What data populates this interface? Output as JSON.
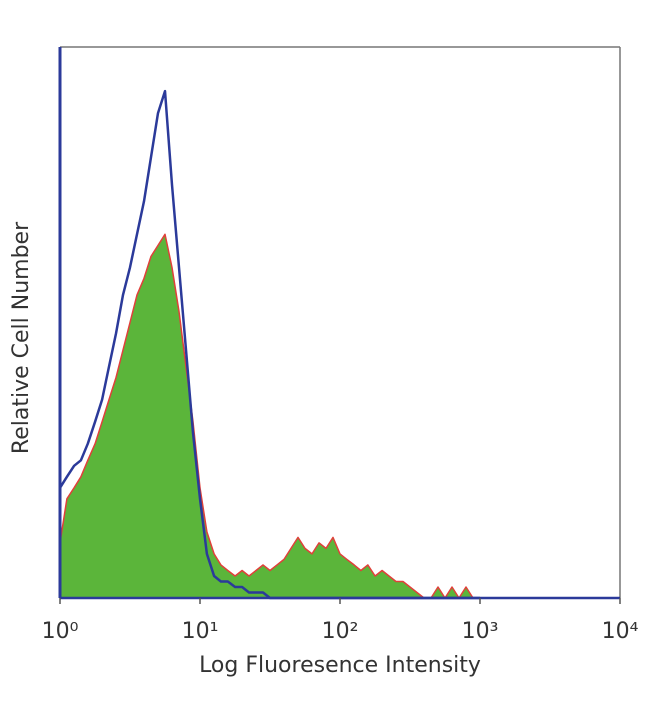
{
  "chart_data": {
    "type": "histogram-overlay",
    "xlabel": "Log Fluoresence Intensity",
    "ylabel": "Relative Cell Number",
    "log_x": true,
    "xlim": [
      1,
      10000
    ],
    "ylim": [
      0,
      100
    ],
    "xticks": [
      {
        "value": 1,
        "label": "10⁰"
      },
      {
        "value": 10,
        "label": "10¹"
      },
      {
        "value": 100,
        "label": "10²"
      },
      {
        "value": 1000,
        "label": "10³"
      },
      {
        "value": 10000,
        "label": "10⁴"
      }
    ],
    "x": [
      1,
      1.12,
      1.26,
      1.41,
      1.58,
      1.78,
      2.0,
      2.24,
      2.51,
      2.82,
      3.16,
      3.55,
      3.98,
      4.47,
      5.01,
      5.62,
      6.31,
      7.08,
      7.94,
      8.91,
      10,
      11.2,
      12.6,
      14.1,
      15.8,
      17.8,
      20,
      22.4,
      25.1,
      28.2,
      31.6,
      35.5,
      39.8,
      44.7,
      50.1,
      56.2,
      63.1,
      70.8,
      79.4,
      89.1,
      100,
      112,
      126,
      141,
      158,
      178,
      200,
      224,
      251,
      282,
      316,
      355,
      398,
      447,
      501,
      562,
      631,
      708,
      794,
      891,
      1000
    ],
    "series": [
      {
        "color": "#5bb53a",
        "outline": "#e0403a",
        "filled": true,
        "values": [
          10,
          18,
          20,
          22,
          25,
          28,
          32,
          36,
          40,
          45,
          50,
          55,
          58,
          62,
          64,
          66,
          60,
          52,
          42,
          32,
          20,
          12,
          8,
          6,
          5,
          4,
          5,
          4,
          5,
          6,
          5,
          6,
          7,
          9,
          11,
          9,
          8,
          10,
          9,
          11,
          8,
          7,
          6,
          5,
          6,
          4,
          5,
          4,
          3,
          3,
          2,
          1,
          0,
          0,
          2,
          0,
          2,
          0,
          2,
          0,
          0
        ]
      },
      {
        "color": "#2b3a9a",
        "filled": false,
        "values": [
          20,
          22,
          24,
          25,
          28,
          32,
          36,
          42,
          48,
          55,
          60,
          66,
          72,
          80,
          88,
          92,
          75,
          60,
          45,
          30,
          18,
          8,
          4,
          3,
          3,
          2,
          2,
          1,
          1,
          1,
          0,
          0,
          0,
          0,
          0,
          0,
          0,
          0,
          0,
          0,
          0,
          0,
          0,
          0,
          0,
          0,
          0,
          0,
          0,
          0,
          0,
          0,
          0,
          0,
          0,
          0,
          0,
          0,
          0,
          0,
          0
        ]
      }
    ]
  }
}
